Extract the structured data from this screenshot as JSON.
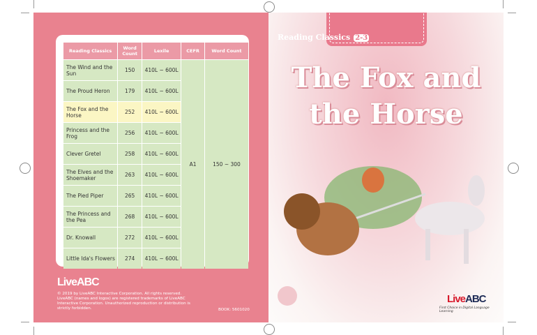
{
  "back_cover": {
    "table": {
      "headers": [
        "Reading Classics",
        "Word Count",
        "Lexile",
        "CEFR",
        "Word Count"
      ],
      "rows": [
        {
          "title": "The Wind and the Sun",
          "count": "150",
          "lexile": "410L ~ 600L"
        },
        {
          "title": "The Proud Heron",
          "count": "179",
          "lexile": "410L ~ 600L"
        },
        {
          "title": "The Fox and the Horse",
          "count": "252",
          "lexile": "410L ~ 600L",
          "highlighted": true
        },
        {
          "title": "Princess and the Frog",
          "count": "256",
          "lexile": "410L ~ 600L"
        },
        {
          "title": "Clever Gretel",
          "count": "258",
          "lexile": "410L ~ 600L"
        },
        {
          "title": "The Elves and the Shoemaker",
          "count": "263",
          "lexile": "410L ~ 600L"
        },
        {
          "title": "The Pied Piper",
          "count": "265",
          "lexile": "410L ~ 600L"
        },
        {
          "title": "The Princess and the Pea",
          "count": "268",
          "lexile": "410L ~ 600L"
        },
        {
          "title": "Dr. Knowall",
          "count": "272",
          "lexile": "410L ~ 600L"
        },
        {
          "title": "Little Ida's Flowers",
          "count": "274",
          "lexile": "410L ~ 600L"
        }
      ],
      "cefr": "A1",
      "word_count_range": "150 ~ 300"
    },
    "logo": "LiveABC",
    "copyright": "© 2019 by LiveABC Interactive Corporation. All rights reserved. LiveABC (names and logos) are registered trademarks of LiveABC Interactive Corporation. Unauthorized reproduction or distribution is strictly forbidden.",
    "book_code": "BOOK: 5601020"
  },
  "front_cover": {
    "series": "Reading Classics",
    "level": "2-3",
    "title_line1": "The Fox and",
    "title_line2": "the Horse",
    "logo": "LiveABC",
    "tagline": "First Choice in Digital Language Learning",
    "icon": "reading-pen-icon"
  },
  "colors": {
    "back_pink": "#e9828f",
    "header_pink": "#eb9aa6",
    "row_green": "#d6e8c3",
    "highlight_yellow": "#fbf6c4",
    "logo_red": "#d7192b",
    "logo_navy": "#1d2a55"
  }
}
